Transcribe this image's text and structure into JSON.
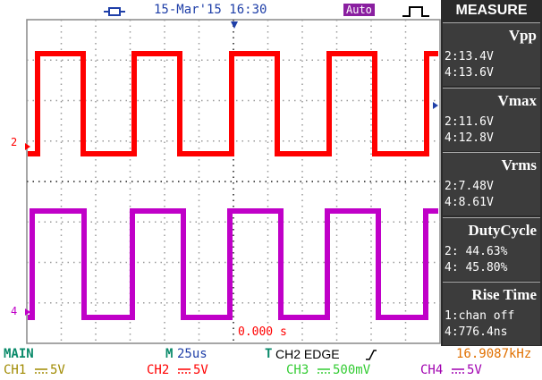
{
  "header": {
    "datetime": "15-Mar'15 16:30",
    "mode": "Auto",
    "panel_title": "MEASURE"
  },
  "measurements": [
    {
      "name": "Vpp",
      "lines": [
        "2:13.4V",
        "4:13.6V"
      ]
    },
    {
      "name": "Vmax",
      "lines": [
        "2:11.6V",
        "4:12.8V"
      ]
    },
    {
      "name": "Vrms",
      "lines": [
        "2:7.48V",
        "4:8.61V"
      ]
    },
    {
      "name": "DutyCycle",
      "lines": [
        "2: 44.63%",
        "4: 45.80%"
      ]
    },
    {
      "name": "Rise Time",
      "lines": [
        "1:chan off",
        "4:776.4ns"
      ]
    }
  ],
  "display": {
    "trigger_time": "0.000 s",
    "channel_markers": [
      "2",
      "4"
    ]
  },
  "status": {
    "mode": "MAIN",
    "timebase_prefix": "M",
    "timebase": "25us",
    "trigger_prefix": "T",
    "trigger": "CH2 EDGE",
    "frequency": "16.9087kHz"
  },
  "channels": [
    {
      "name": "CH1",
      "scale": "5V"
    },
    {
      "name": "CH2",
      "scale": "5V"
    },
    {
      "name": "CH3",
      "scale": "500mV"
    },
    {
      "name": "CH4",
      "scale": "5V"
    }
  ]
}
